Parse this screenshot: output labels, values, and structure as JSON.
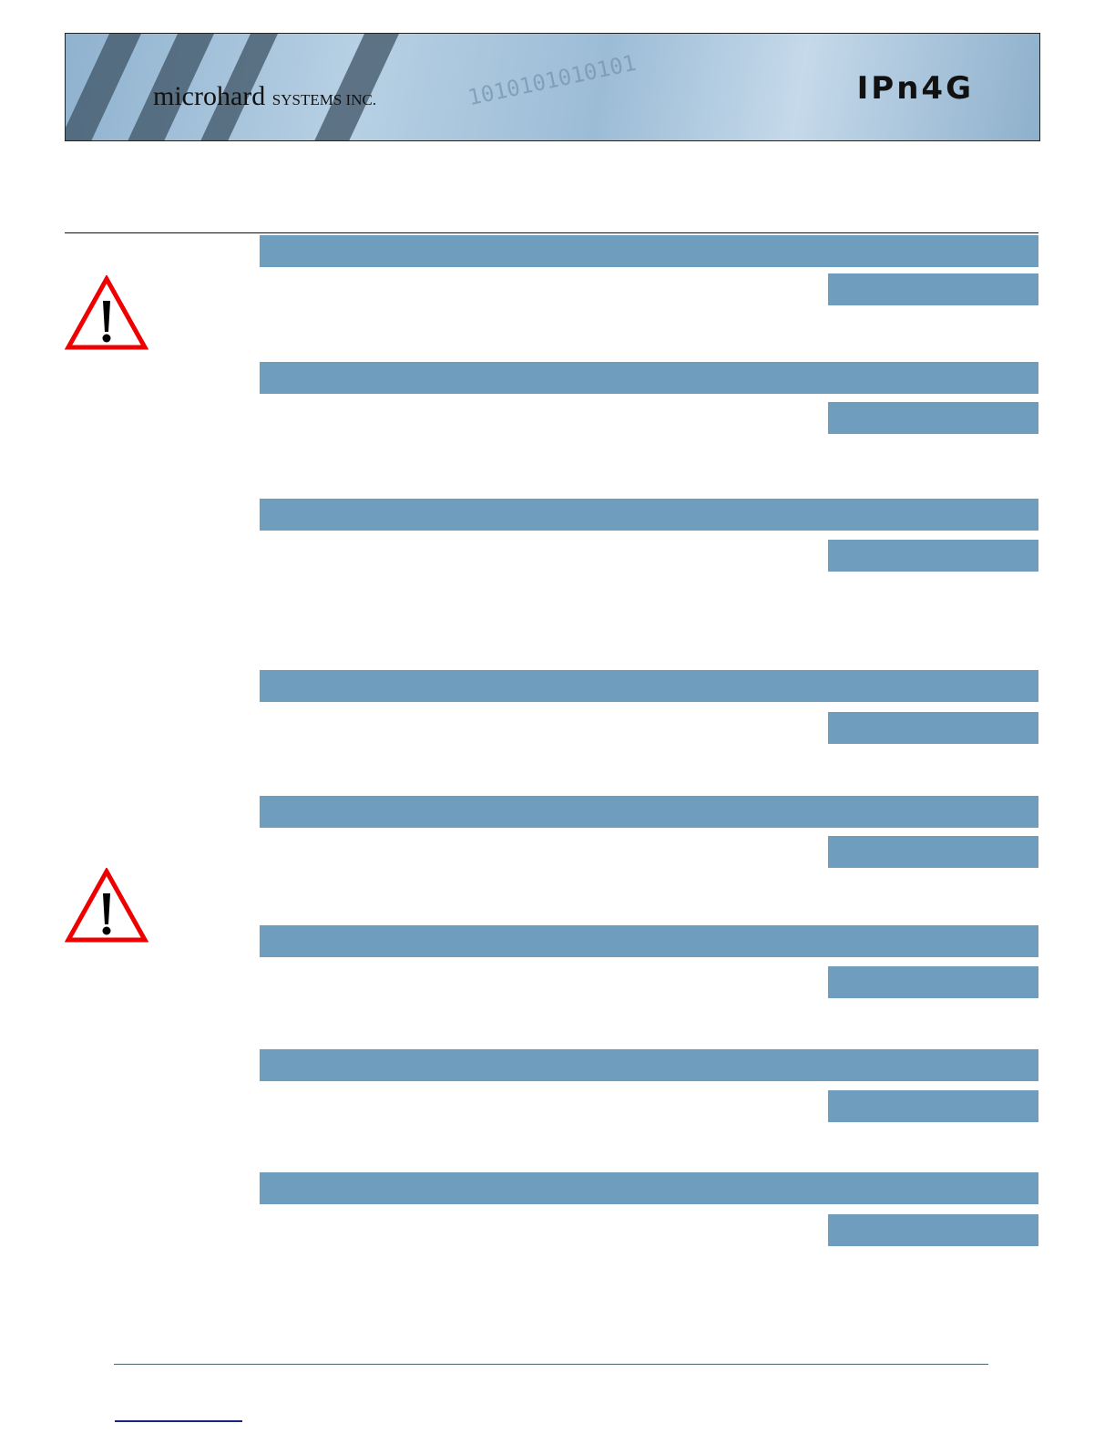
{
  "header": {
    "brand_name": "microhard",
    "brand_suffix": "SYSTEMS INC.",
    "product": "IPn4G",
    "binary_decoration": "1010101010101",
    "accent_color": "#6f9dbd"
  },
  "icons": [
    "warning-icon",
    "warning-icon"
  ]
}
